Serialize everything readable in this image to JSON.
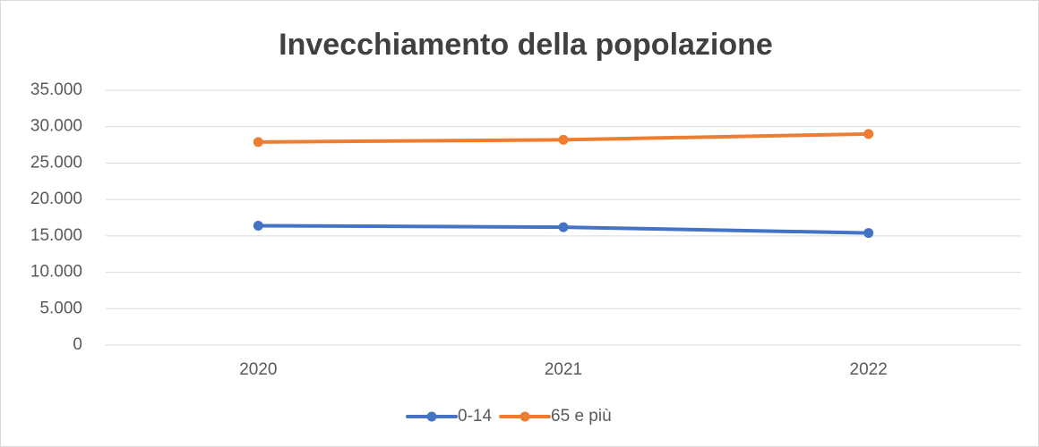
{
  "chart_data": {
    "type": "line",
    "title": "Invecchiamento della popolazione",
    "categories": [
      "2020",
      "2021",
      "2022"
    ],
    "series": [
      {
        "name": "0-14",
        "color": "#4472c4",
        "values": [
          16400,
          16200,
          15400
        ]
      },
      {
        "name": "65 e più",
        "color": "#ed7d31",
        "values": [
          27900,
          28200,
          29000
        ]
      }
    ],
    "ylim": [
      0,
      35000
    ],
    "yticks": [
      0,
      {
        "value": 5000,
        "label": "5.000"
      },
      {
        "value": 10000,
        "label": "10.000"
      },
      {
        "value": 15000,
        "label": "15.000"
      },
      {
        "value": 20000,
        "label": "20.000"
      },
      {
        "value": 25000,
        "label": "25.000"
      },
      {
        "value": 30000,
        "label": "30.000"
      },
      {
        "value": 35000,
        "label": "35.000"
      }
    ],
    "grid": true,
    "legend": "bottom"
  }
}
